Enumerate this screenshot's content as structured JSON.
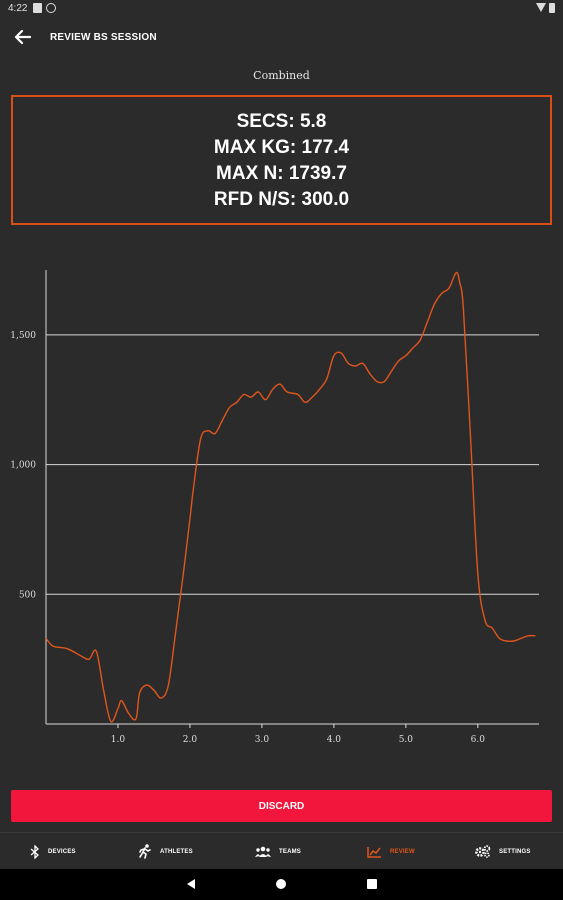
{
  "status_bar": {
    "time": "4:22"
  },
  "header": {
    "title": "REVIEW BS SESSION"
  },
  "chart_caption": "Combined",
  "stats": [
    "SECS: 5.8",
    "MAX KG: 177.4",
    "MAX N: 1739.7",
    "RFD N/S: 300.0"
  ],
  "chart_data": {
    "type": "line",
    "title": "Combined",
    "xlabel": "",
    "ylabel": "",
    "xlim": [
      0,
      6.85
    ],
    "ylim": [
      0,
      1750
    ],
    "x_ticks": [
      1.0,
      2.0,
      3.0,
      4.0,
      5.0,
      6.0
    ],
    "x_tick_labels": [
      "1.0",
      "2.0",
      "3.0",
      "4.0",
      "5.0",
      "6.0"
    ],
    "y_ticks": [
      500,
      1000,
      1500
    ],
    "y_tick_labels": [
      "500",
      "1,000",
      "1,500"
    ],
    "grid": "horizontal",
    "color": "#e0561c",
    "series": [
      {
        "x": [
          0,
          0.1,
          0.3,
          0.5,
          0.6,
          0.7,
          0.8,
          0.9,
          1.0,
          1.05,
          1.15,
          1.25,
          1.3,
          1.4,
          1.5,
          1.6,
          1.7,
          1.8,
          1.9,
          2.0,
          2.05,
          2.15,
          2.25,
          2.35,
          2.45,
          2.55,
          2.65,
          2.75,
          2.85,
          2.95,
          3.05,
          3.15,
          3.25,
          3.35,
          3.5,
          3.6,
          3.7,
          3.8,
          3.9,
          4.0,
          4.1,
          4.2,
          4.3,
          4.4,
          4.5,
          4.6,
          4.7,
          4.8,
          4.9,
          5.0,
          5.1,
          5.2,
          5.3,
          5.4,
          5.5,
          5.6,
          5.7,
          5.75,
          5.8,
          5.9,
          6.0,
          6.1,
          6.2,
          6.3,
          6.4,
          6.5,
          6.6,
          6.7,
          6.8
        ],
        "y": [
          330,
          300,
          290,
          260,
          250,
          280,
          130,
          10,
          60,
          90,
          40,
          20,
          120,
          150,
          130,
          100,
          150,
          350,
          560,
          790,
          910,
          1100,
          1130,
          1120,
          1170,
          1220,
          1240,
          1270,
          1260,
          1280,
          1250,
          1290,
          1310,
          1280,
          1270,
          1240,
          1260,
          1290,
          1330,
          1420,
          1430,
          1390,
          1380,
          1390,
          1350,
          1320,
          1320,
          1360,
          1400,
          1420,
          1450,
          1480,
          1550,
          1620,
          1660,
          1680,
          1740,
          1700,
          1600,
          1100,
          580,
          400,
          370,
          330,
          320,
          320,
          330,
          340,
          340
        ]
      }
    ]
  },
  "actions": {
    "discard_label": "DISCARD"
  },
  "bottom_nav": [
    {
      "label": "DEVICES",
      "icon": "bluetooth-icon",
      "active": false
    },
    {
      "label": "ATHLETES",
      "icon": "running-person-icon",
      "active": false
    },
    {
      "label": "TEAMS",
      "icon": "group-icon",
      "active": false
    },
    {
      "label": "REVIEW",
      "icon": "trending-up-icon",
      "active": true
    },
    {
      "label": "SETTINGS",
      "icon": "gears-icon",
      "active": false
    }
  ],
  "system_nav": {
    "back_icon": "triangle-back-icon",
    "home_icon": "circle-home-icon",
    "recents_icon": "square-recents-icon"
  },
  "colors": {
    "accent": "#e0561c",
    "danger": "#f2163c",
    "background": "#2b2b2b"
  }
}
